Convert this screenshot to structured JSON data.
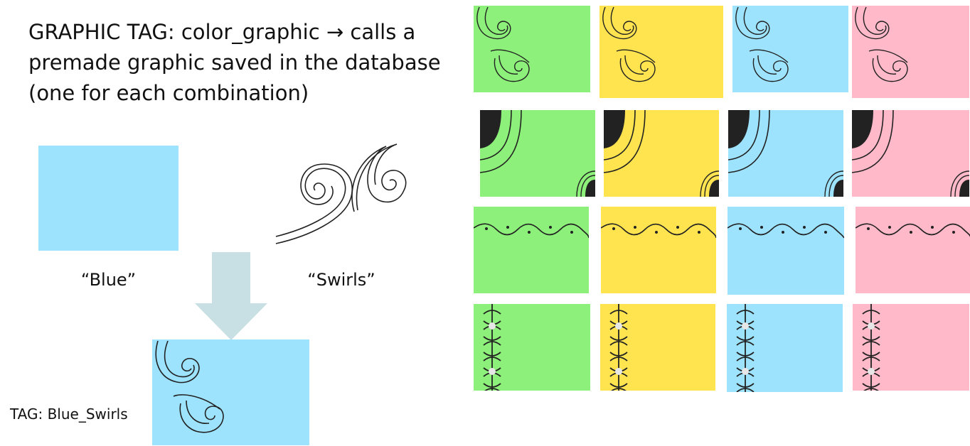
{
  "heading": {
    "line1": "GRAPHIC TAG: color_graphic → calls a",
    "line2": "premade graphic saved in the database",
    "line3": "(one for each combination)"
  },
  "example": {
    "color_label": "“Blue”",
    "graphic_label": "“Swirls”",
    "result_tag": "TAG: Blue_Swirls"
  },
  "colors": {
    "green": "#8df07a",
    "yellow": "#ffe44f",
    "blue": "#9ee3fd",
    "pink": "#ffb9c9",
    "arrow": "#c8e0e4",
    "ink": "#222222"
  },
  "grid": {
    "rows": [
      {
        "pattern": "swirls"
      },
      {
        "pattern": "corner-arcs"
      },
      {
        "pattern": "wave-dots"
      },
      {
        "pattern": "vertical-chain"
      }
    ],
    "columns": [
      "green",
      "yellow",
      "blue",
      "pink"
    ]
  }
}
